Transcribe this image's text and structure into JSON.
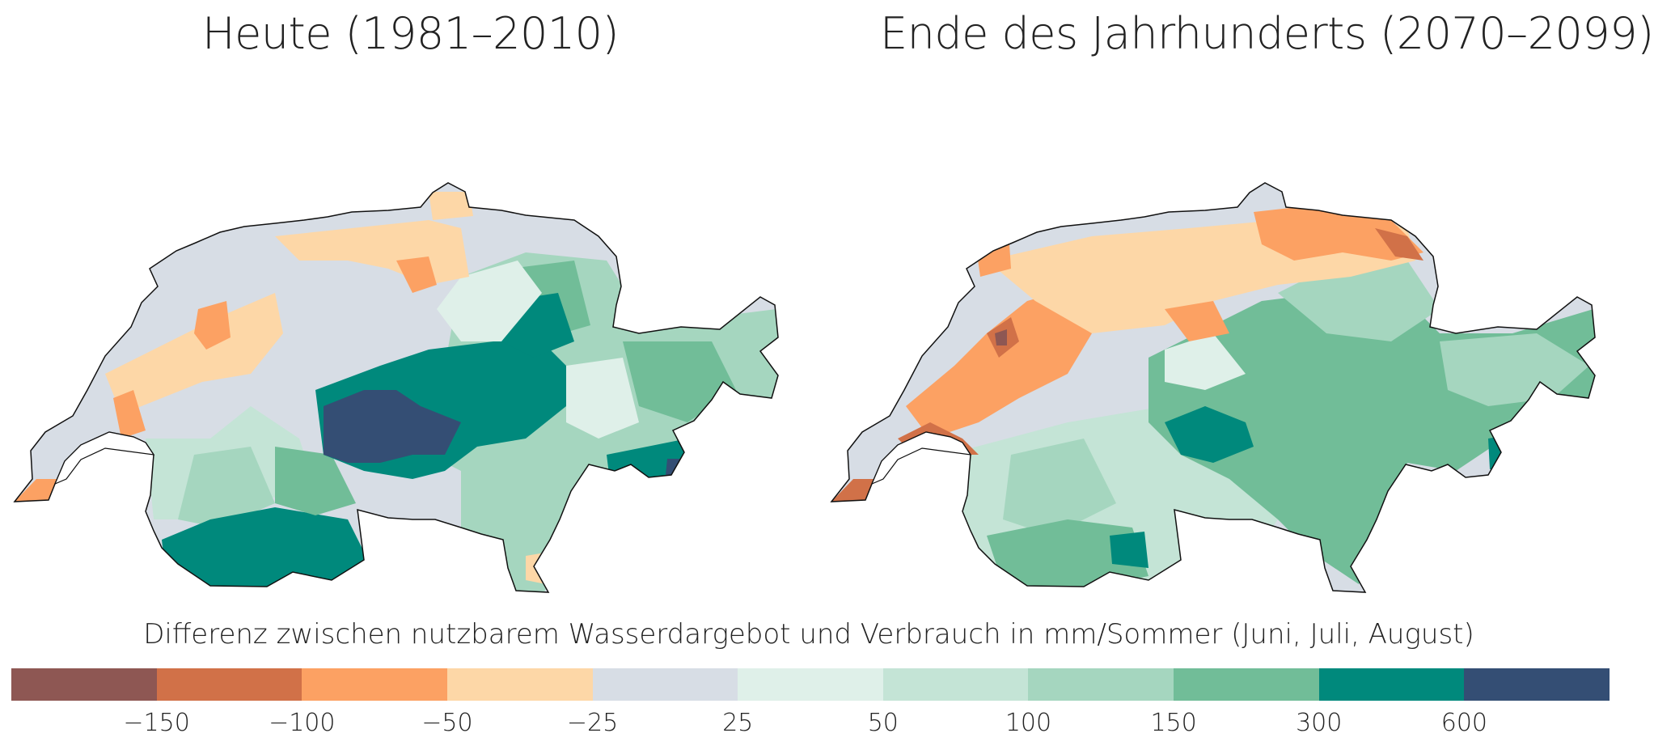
{
  "maps": [
    {
      "title": "Heute (1981–2010)",
      "dominant_pattern": "central alpine region highest class; north plateau mostly -25 to 25; southwest negative"
    },
    {
      "title": "Ende des Jahrhunderts (2070–2099)",
      "dominant_pattern": "negative classes expand in west and northeast; fewer highest-class regions"
    }
  ],
  "legend": {
    "title": "Differenz zwischen nutzbarem Wasserdargebot und Verbrauch in mm/Sommer (Juni, Juli, August)",
    "classes": [
      {
        "color": "#8e5753"
      },
      {
        "color": "#d17148"
      },
      {
        "color": "#fca163"
      },
      {
        "color": "#fdd7a7"
      },
      {
        "color": "#d7dde5"
      },
      {
        "color": "#dff0e9"
      },
      {
        "color": "#c4e4d6"
      },
      {
        "color": "#a5d6bf"
      },
      {
        "color": "#71bd98"
      },
      {
        "color": "#00897c"
      },
      {
        "color": "#344e74"
      }
    ],
    "ticks": [
      "−150",
      "−100",
      "−50",
      "−25",
      "25",
      "50",
      "100",
      "150",
      "300",
      "600"
    ]
  }
}
